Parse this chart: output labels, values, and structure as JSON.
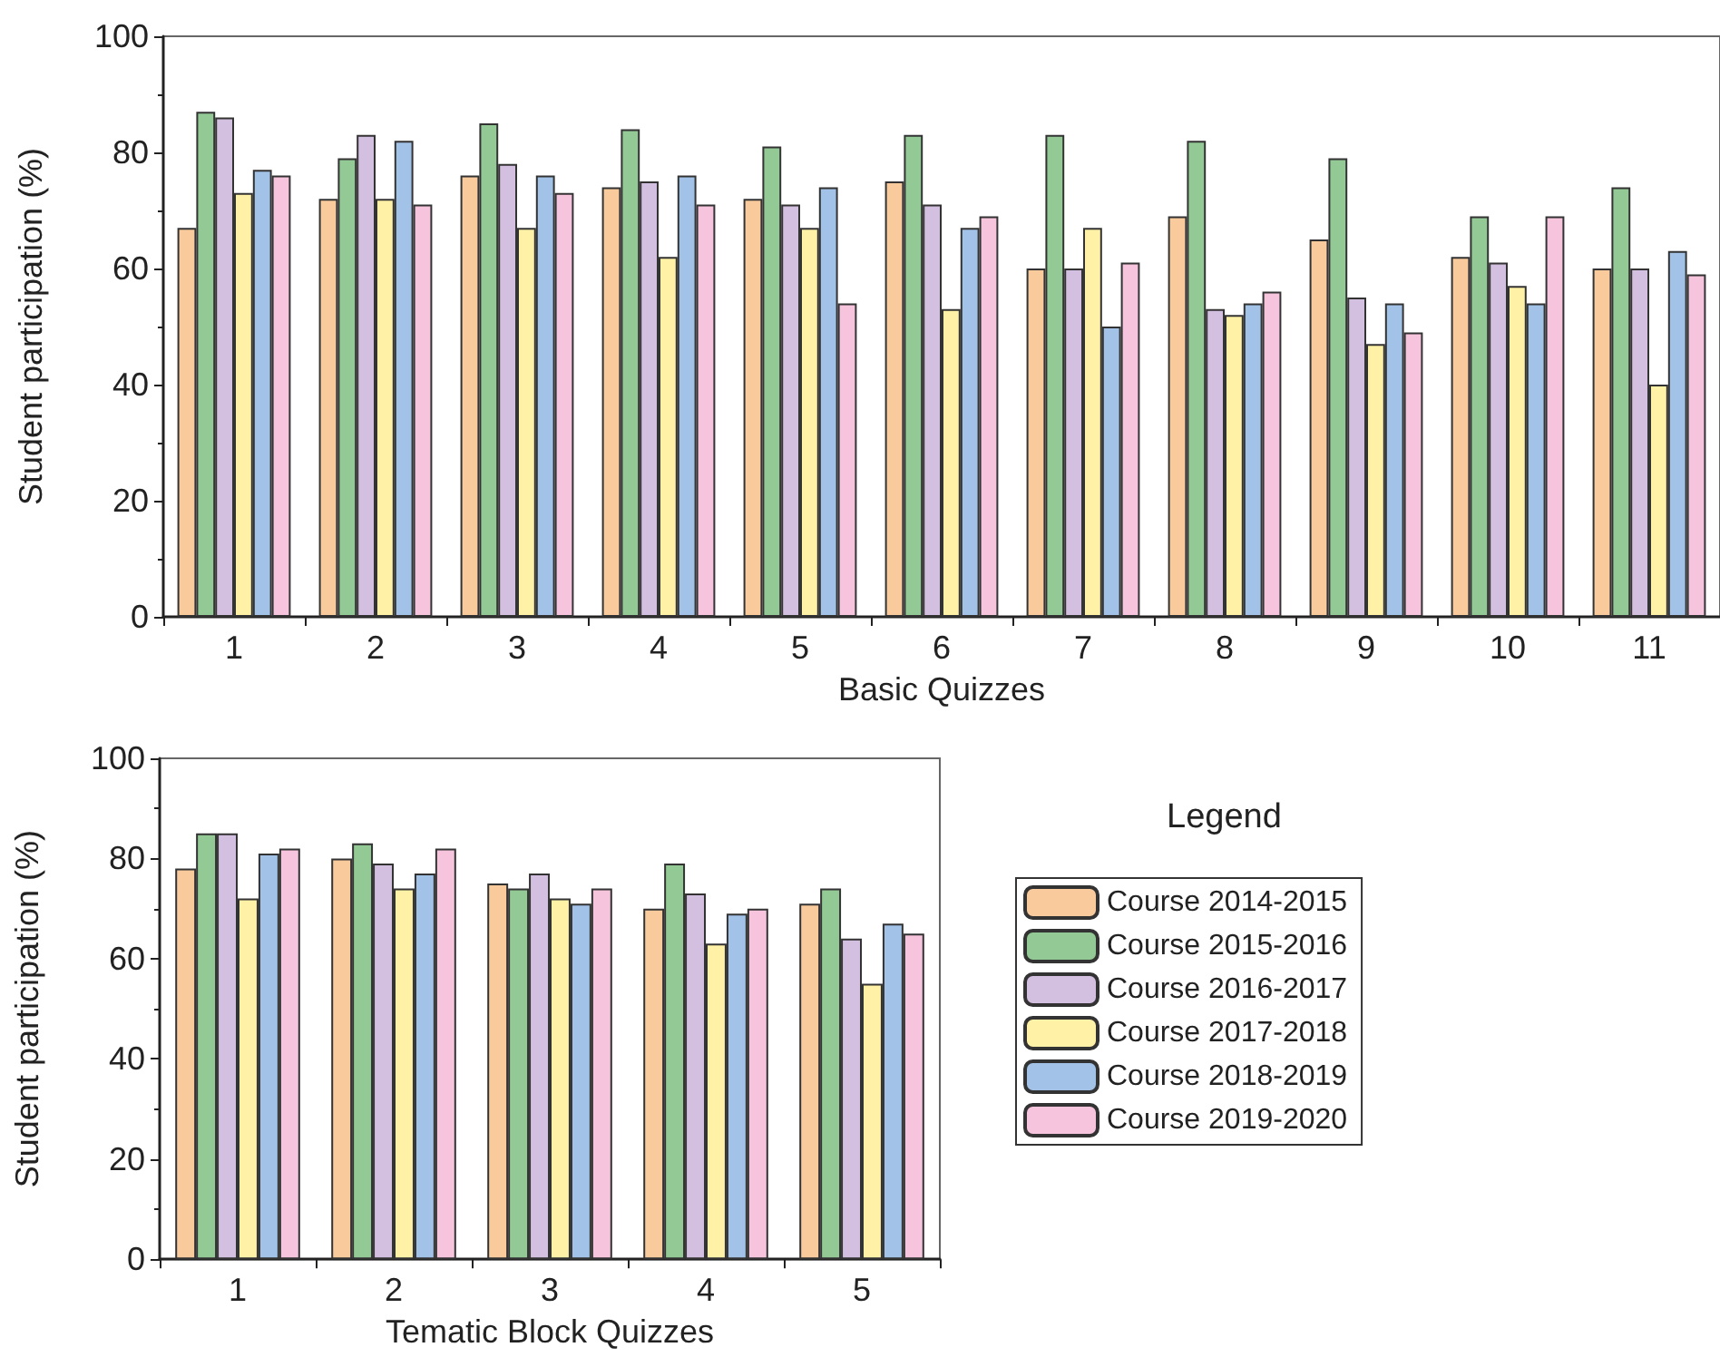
{
  "chart_data": [
    {
      "type": "bar",
      "xlabel": "Basic Quizzes",
      "ylabel": "Student participation (%)",
      "categories": [
        "1",
        "2",
        "3",
        "4",
        "5",
        "6",
        "7",
        "8",
        "9",
        "10",
        "11"
      ],
      "ylim": [
        0,
        100
      ],
      "yticks": [
        0,
        20,
        40,
        60,
        80,
        100
      ],
      "grid": false,
      "legend": false,
      "series": [
        {
          "color": "#f9cb9c",
          "values": [
            67,
            72,
            76,
            74,
            72,
            75,
            60,
            69,
            65,
            62,
            60
          ]
        },
        {
          "color": "#93c994",
          "values": [
            87,
            79,
            85,
            84,
            81,
            83,
            83,
            82,
            79,
            69,
            74
          ]
        },
        {
          "color": "#d3bfdf",
          "values": [
            86,
            83,
            78,
            75,
            71,
            71,
            60,
            53,
            55,
            61,
            60
          ]
        },
        {
          "color": "#fff2a6",
          "values": [
            73,
            72,
            67,
            62,
            67,
            53,
            67,
            52,
            47,
            57,
            40
          ]
        },
        {
          "color": "#a2c2e8",
          "values": [
            77,
            82,
            76,
            76,
            74,
            67,
            50,
            54,
            54,
            54,
            63
          ]
        },
        {
          "color": "#f6c4dd",
          "values": [
            76,
            71,
            73,
            71,
            54,
            69,
            61,
            56,
            49,
            69,
            59
          ]
        }
      ]
    },
    {
      "type": "bar",
      "xlabel": "Tematic Block Quizzes",
      "ylabel": "Student participation (%)",
      "categories": [
        "1",
        "2",
        "3",
        "4",
        "5"
      ],
      "ylim": [
        0,
        100
      ],
      "yticks": [
        0,
        20,
        40,
        60,
        80,
        100
      ],
      "grid": false,
      "legend": "right",
      "legend_title": "Legend",
      "series": [
        {
          "name": "Course 2014-2015",
          "color": "#f9cb9c",
          "values": [
            78,
            80,
            75,
            70,
            71
          ]
        },
        {
          "name": "Course 2015-2016",
          "color": "#93c994",
          "values": [
            85,
            83,
            74,
            79,
            74
          ]
        },
        {
          "name": "Course 2016-2017",
          "color": "#d3bfdf",
          "values": [
            85,
            79,
            77,
            73,
            64
          ]
        },
        {
          "name": "Course 2017-2018",
          "color": "#fff2a6",
          "values": [
            72,
            74,
            72,
            63,
            55
          ]
        },
        {
          "name": "Course 2018-2019",
          "color": "#a2c2e8",
          "values": [
            81,
            77,
            71,
            69,
            67
          ]
        },
        {
          "name": "Course 2019-2020",
          "color": "#f6c4dd",
          "values": [
            82,
            82,
            74,
            70,
            65
          ]
        }
      ]
    }
  ]
}
